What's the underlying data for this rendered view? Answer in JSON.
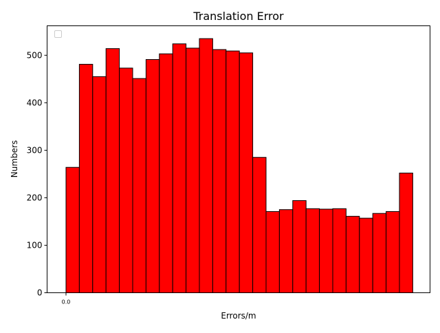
{
  "chart_data": {
    "type": "bar",
    "title": "Translation Error",
    "xlabel": "Errors/m",
    "ylabel": "Numbers",
    "ylim": [
      0,
      562
    ],
    "yticks": [
      0,
      100,
      200,
      300,
      400,
      500
    ],
    "xtick_labels": [
      "0.0"
    ],
    "legend": {
      "placement": "upper-left",
      "entries": []
    },
    "grid": false,
    "bar_color": "#ff0000",
    "edge_color": "#000000",
    "values": [
      264,
      481,
      455,
      514,
      473,
      451,
      491,
      503,
      524,
      515,
      535,
      512,
      509,
      505,
      285,
      171,
      175,
      194,
      177,
      176,
      177,
      161,
      157,
      167,
      171,
      252
    ]
  }
}
